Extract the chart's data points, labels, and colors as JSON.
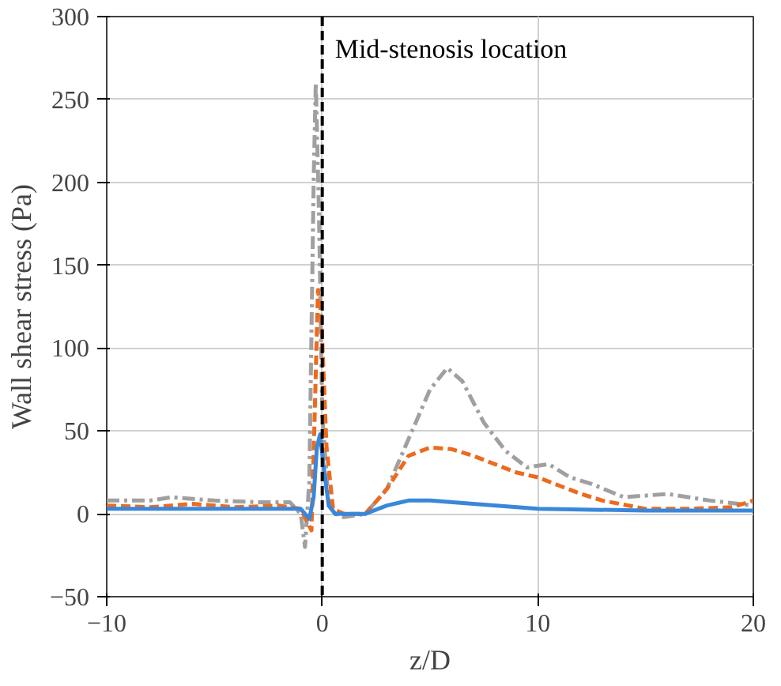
{
  "chart_data": {
    "type": "line",
    "xlabel": "z/D",
    "ylabel": "Wall shear stress (Pa)",
    "xlim": [
      -10,
      20
    ],
    "ylim": [
      -50,
      300
    ],
    "xticks": [
      -10,
      0,
      10,
      20
    ],
    "yticks": [
      -50,
      0,
      50,
      100,
      150,
      200,
      250,
      300
    ],
    "grid": true,
    "ref_lines": [
      {
        "axis": "x",
        "value": 0,
        "label": "Mid-stenosis location",
        "color": "#000000",
        "line_style": "dashed"
      }
    ],
    "series": [
      {
        "color": "#a0a0a0",
        "line_style": "dashdot",
        "x": [
          -10,
          -8,
          -7,
          -5,
          -3,
          -1.5,
          -1,
          -0.8,
          -0.6,
          -0.4,
          -0.3,
          -0.15,
          0,
          0.3,
          0.6,
          1,
          2,
          3,
          4,
          5,
          5.8,
          6.5,
          7.5,
          8.5,
          9.5,
          10.5,
          11.5,
          12.5,
          14,
          16,
          18,
          20
        ],
        "values": [
          8,
          8,
          10,
          8,
          7,
          7,
          0,
          -20,
          20,
          200,
          260,
          180,
          60,
          5,
          0,
          -2,
          0,
          15,
          45,
          75,
          88,
          80,
          55,
          38,
          28,
          30,
          22,
          18,
          10,
          12,
          8,
          5
        ]
      },
      {
        "color": "#ed6a1e",
        "line_style": "dashed",
        "x": [
          -10,
          -8,
          -6,
          -4,
          -2,
          -1,
          -0.7,
          -0.5,
          -0.35,
          -0.2,
          -0.05,
          0.2,
          0.5,
          1,
          2,
          3,
          4,
          5,
          6,
          7,
          8,
          9,
          10,
          11,
          12,
          13,
          15,
          17,
          19,
          20
        ],
        "values": [
          5,
          4,
          6,
          4,
          5,
          3,
          -5,
          -10,
          60,
          135,
          120,
          40,
          3,
          0,
          0,
          15,
          35,
          40,
          39,
          35,
          30,
          25,
          22,
          17,
          12,
          8,
          3,
          3,
          4,
          8
        ]
      },
      {
        "color": "#3a87d9",
        "line_style": "solid",
        "x": [
          -10,
          -6,
          -2,
          -1,
          -0.6,
          -0.4,
          -0.25,
          -0.1,
          0.05,
          0.3,
          0.6,
          1,
          2,
          3,
          4,
          5,
          7,
          10,
          15,
          20
        ],
        "values": [
          3,
          3,
          3,
          3,
          -3,
          10,
          40,
          48,
          30,
          5,
          0,
          0,
          0,
          5,
          8,
          8,
          6,
          3,
          2,
          2
        ]
      }
    ]
  }
}
